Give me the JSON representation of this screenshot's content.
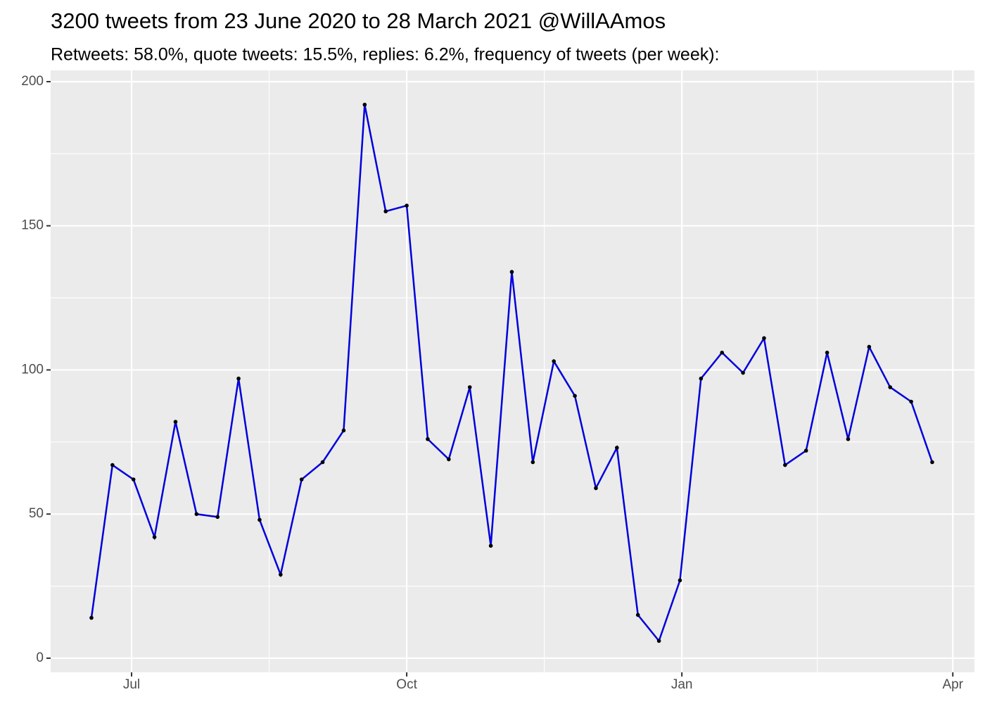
{
  "chart_data": {
    "type": "line",
    "title": "3200 tweets from 23 June 2020 to 28 March 2021 @WillAAmos",
    "subtitle": "Retweets: 58.0%, quote tweets: 15.5%, replies: 6.2%, frequency of tweets (per week):",
    "x": [
      1,
      2,
      3,
      4,
      5,
      6,
      7,
      8,
      9,
      10,
      11,
      12,
      13,
      14,
      15,
      16,
      17,
      18,
      19,
      20,
      21,
      22,
      23,
      24,
      25,
      26,
      27,
      28,
      29,
      30,
      31,
      32,
      33,
      34,
      35,
      36,
      37,
      38,
      39,
      40,
      41
    ],
    "series": [
      {
        "color": "#0000dd",
        "point_color": "#000000",
        "values": [
          14,
          67,
          62,
          42,
          82,
          50,
          49,
          97,
          48,
          29,
          62,
          68,
          79,
          192,
          155,
          157,
          76,
          69,
          94,
          39,
          134,
          68,
          103,
          91,
          59,
          73,
          15,
          6,
          27,
          97,
          106,
          99,
          111,
          67,
          72,
          106,
          76,
          108,
          94,
          89,
          68
        ]
      }
    ],
    "xlim": [
      -0.94,
      43.01
    ],
    "xticks": [
      {
        "value": 2.91,
        "label": "Jul"
      },
      {
        "value": 16.0,
        "label": "Oct"
      },
      {
        "value": 29.09,
        "label": "Jan"
      },
      {
        "value": 41.98,
        "label": "Apr"
      }
    ],
    "ylim": [
      -4.9,
      203.9
    ],
    "yticks": [
      0,
      50,
      100,
      150,
      200
    ],
    "grid": true
  }
}
